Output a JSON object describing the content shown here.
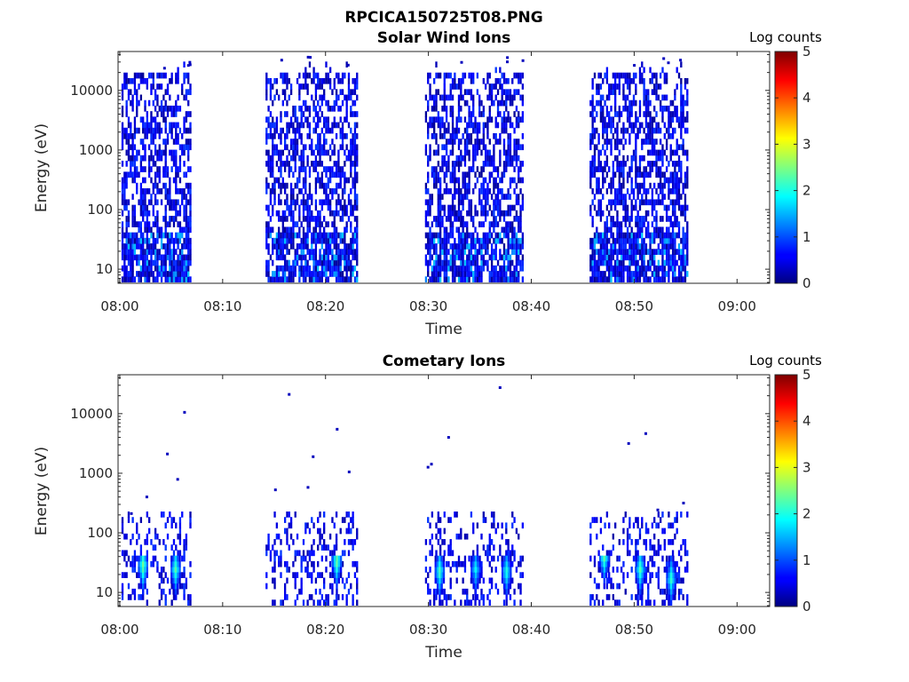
{
  "figure_title": "RPCICA150725T08.PNG",
  "chart_data": [
    {
      "type": "heatmap",
      "title": "Solar Wind Ions",
      "xlabel": "Time",
      "ylabel": "Energy (eV)",
      "x_ticks": [
        "08:00",
        "08:10",
        "08:20",
        "08:30",
        "08:40",
        "08:50",
        "09:00"
      ],
      "xlim": [
        "07:59:50",
        "09:03:10"
      ],
      "y_scale": "log",
      "y_ticks": [
        10,
        100,
        1000,
        10000
      ],
      "ylim": [
        5.8,
        45000
      ],
      "colorbar": {
        "label": "Log counts",
        "range": [
          0,
          5
        ],
        "ticks": [
          0,
          1,
          2,
          3,
          4,
          5
        ],
        "colormap": "jet"
      },
      "data_intervals": [
        [
          "08:00:10",
          "08:06:50"
        ],
        [
          "08:14:10",
          "08:23:00"
        ],
        [
          "08:29:40",
          "08:39:10"
        ],
        [
          "08:45:40",
          "08:55:10"
        ]
      ],
      "character": "scattered counts 0-1 from ~6 eV up to ~20 keV, denser and up to 1.5 below 40 eV",
      "color_levels_seen": [
        0.3,
        1.0,
        1.5
      ]
    },
    {
      "type": "heatmap",
      "title": "Cometary Ions",
      "xlabel": "Time",
      "ylabel": "Energy (eV)",
      "x_ticks": [
        "08:00",
        "08:10",
        "08:20",
        "08:30",
        "08:40",
        "08:50",
        "09:00"
      ],
      "xlim": [
        "07:59:50",
        "09:03:10"
      ],
      "y_scale": "log",
      "y_ticks": [
        10,
        100,
        1000,
        10000
      ],
      "ylim": [
        5.8,
        45000
      ],
      "colorbar": {
        "label": "Log counts",
        "range": [
          0,
          5
        ],
        "ticks": [
          0,
          1,
          2,
          3,
          4,
          5
        ],
        "colormap": "jet"
      },
      "data_intervals": [
        [
          "08:00:10",
          "08:06:50"
        ],
        [
          "08:14:10",
          "08:23:00"
        ],
        [
          "08:29:40",
          "08:39:10"
        ],
        [
          "08:45:40",
          "08:55:10"
        ]
      ],
      "character": "counts mostly below 200 eV, bright streaks up to log counts ~2.5 near 10-40 eV",
      "peaks": [
        {
          "time": "08:02:10",
          "energy_ev": 25,
          "log_counts": 2.5
        },
        {
          "time": "08:05:20",
          "energy_ev": 22,
          "log_counts": 2.3
        },
        {
          "time": "08:21:00",
          "energy_ev": 30,
          "log_counts": 2.5
        },
        {
          "time": "08:31:00",
          "energy_ev": 20,
          "log_counts": 2.3
        },
        {
          "time": "08:34:30",
          "energy_ev": 22,
          "log_counts": 1.9
        },
        {
          "time": "08:37:30",
          "energy_ev": 20,
          "log_counts": 2.1
        },
        {
          "time": "08:47:00",
          "energy_ev": 35,
          "log_counts": 2.4
        },
        {
          "time": "08:50:30",
          "energy_ev": 22,
          "log_counts": 2.3
        },
        {
          "time": "08:53:30",
          "energy_ev": 15,
          "log_counts": 2.2
        }
      ],
      "sparse_high_energy_points": [
        {
          "time": "08:01:00",
          "energy_ev": 200
        },
        {
          "time": "08:02:30",
          "energy_ev": 380
        },
        {
          "time": "08:04:30",
          "energy_ev": 2000
        },
        {
          "time": "08:05:30",
          "energy_ev": 750
        },
        {
          "time": "08:06:10",
          "energy_ev": 10000
        },
        {
          "time": "08:15:00",
          "energy_ev": 500
        },
        {
          "time": "08:16:20",
          "energy_ev": 20000
        },
        {
          "time": "08:18:10",
          "energy_ev": 550
        },
        {
          "time": "08:18:40",
          "energy_ev": 1800
        },
        {
          "time": "08:21:00",
          "energy_ev": 5200
        },
        {
          "time": "08:22:10",
          "energy_ev": 1000
        },
        {
          "time": "08:29:50",
          "energy_ev": 1200
        },
        {
          "time": "08:30:10",
          "energy_ev": 1350
        },
        {
          "time": "08:31:50",
          "energy_ev": 3800
        },
        {
          "time": "08:36:50",
          "energy_ev": 26000
        },
        {
          "time": "08:49:20",
          "energy_ev": 3000
        },
        {
          "time": "08:51:00",
          "energy_ev": 4400
        },
        {
          "time": "08:52:10",
          "energy_ev": 230
        },
        {
          "time": "08:54:40",
          "energy_ev": 300
        }
      ]
    }
  ]
}
